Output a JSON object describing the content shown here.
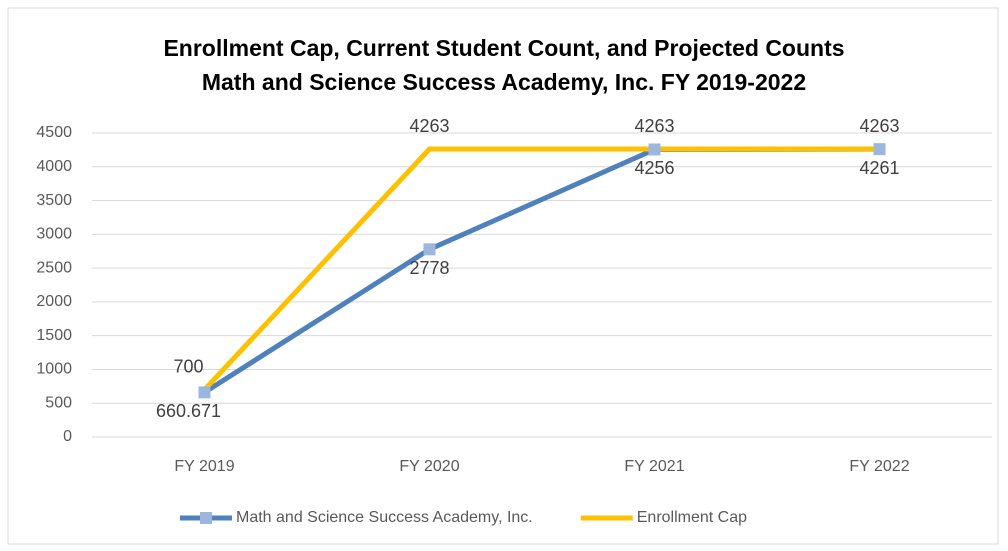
{
  "chart_data": {
    "type": "line",
    "title": [
      "Enrollment Cap, Current Student Count, and Projected Counts",
      "Math and Science Success Academy, Inc. FY 2019-2022"
    ],
    "categories": [
      "FY 2019",
      "FY 2020",
      "FY 2021",
      "FY 2022"
    ],
    "series": [
      {
        "name": "Math and Science Success Academy, Inc.",
        "color": "#4f81bd",
        "marker_color": "#9db6dd",
        "values": [
          660.671,
          2778,
          4256,
          4261
        ],
        "label_position": "below"
      },
      {
        "name": "Enrollment Cap",
        "color": "#ffc000",
        "values": [
          700,
          4263,
          4263,
          4263
        ],
        "label_position": "above"
      }
    ],
    "ylim": [
      0,
      4500
    ],
    "yticks": [
      0,
      500,
      1000,
      1500,
      2000,
      2500,
      3000,
      3500,
      4000,
      4500
    ],
    "grid": true,
    "legend": "bottom"
  }
}
